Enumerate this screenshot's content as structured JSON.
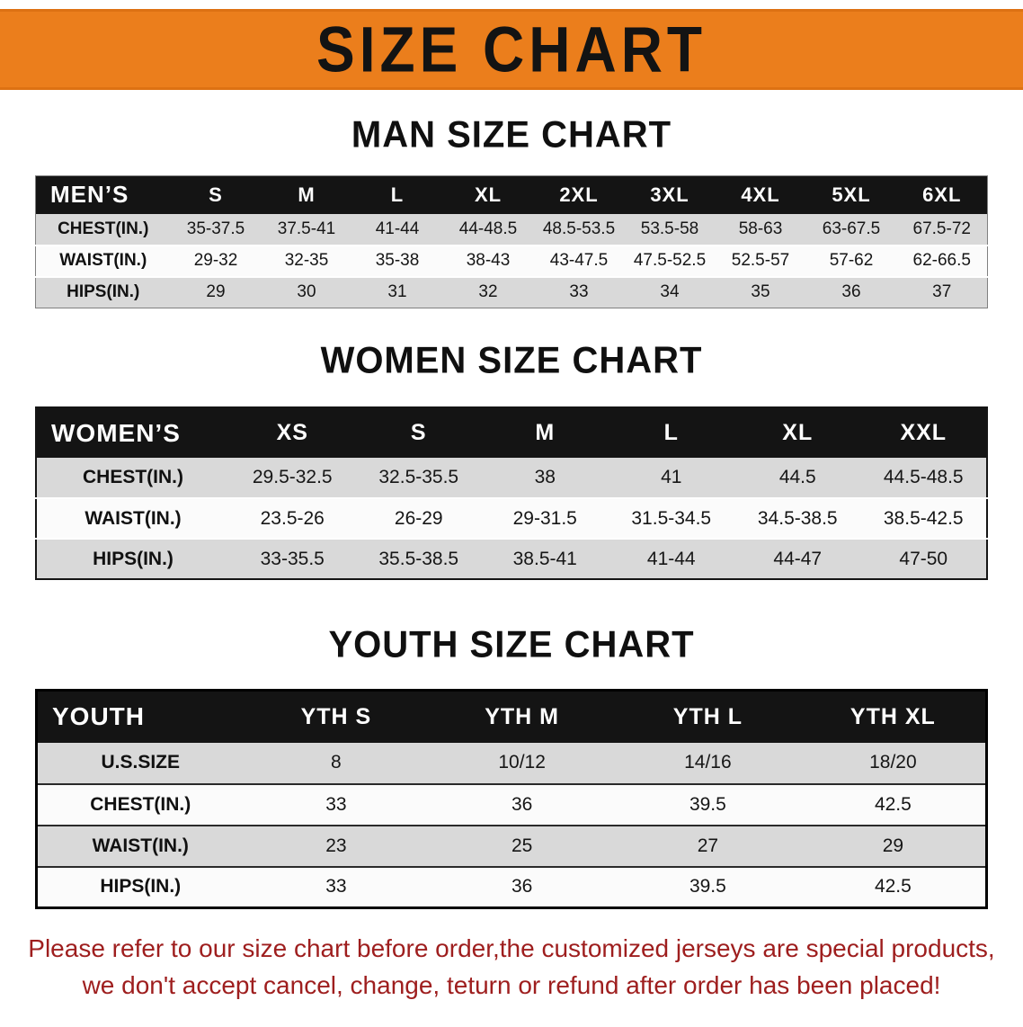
{
  "banner": {
    "title": "SIZE CHART"
  },
  "colors": {
    "banner_orange": "#EB7E1C",
    "table_header_black": "#141414",
    "row_stripe_gray": "#D9D9D9",
    "notice_red": "#9E1E1E"
  },
  "men": {
    "title": "MAN SIZE CHART",
    "header": [
      "MEN’S",
      "S",
      "M",
      "L",
      "XL",
      "2XL",
      "3XL",
      "4XL",
      "5XL",
      "6XL"
    ],
    "rows": [
      [
        "CHEST(IN.)",
        "35-37.5",
        "37.5-41",
        "41-44",
        "44-48.5",
        "48.5-53.5",
        "53.5-58",
        "58-63",
        "63-67.5",
        "67.5-72"
      ],
      [
        "WAIST(IN.)",
        "29-32",
        "32-35",
        "35-38",
        "38-43",
        "43-47.5",
        "47.5-52.5",
        "52.5-57",
        "57-62",
        "62-66.5"
      ],
      [
        "HIPS(IN.)",
        "29",
        "30",
        "31",
        "32",
        "33",
        "34",
        "35",
        "36",
        "37"
      ]
    ]
  },
  "women": {
    "title": "WOMEN SIZE CHART",
    "header": [
      "WOMEN’S",
      "XS",
      "S",
      "M",
      "L",
      "XL",
      "XXL"
    ],
    "rows": [
      [
        "CHEST(IN.)",
        "29.5-32.5",
        "32.5-35.5",
        "38",
        "41",
        "44.5",
        "44.5-48.5"
      ],
      [
        "WAIST(IN.)",
        "23.5-26",
        "26-29",
        "29-31.5",
        "31.5-34.5",
        "34.5-38.5",
        "38.5-42.5"
      ],
      [
        "HIPS(IN.)",
        "33-35.5",
        "35.5-38.5",
        "38.5-41",
        "41-44",
        "44-47",
        "47-50"
      ]
    ]
  },
  "youth": {
    "title": "YOUTH SIZE CHART",
    "header": [
      "YOUTH",
      "YTH S",
      "YTH M",
      "YTH L",
      "YTH XL"
    ],
    "rows": [
      [
        "U.S.SIZE",
        "8",
        "10/12",
        "14/16",
        "18/20"
      ],
      [
        "CHEST(IN.)",
        "33",
        "36",
        "39.5",
        "42.5"
      ],
      [
        "WAIST(IN.)",
        "23",
        "25",
        "27",
        "29"
      ],
      [
        "HIPS(IN.)",
        "33",
        "36",
        "39.5",
        "42.5"
      ]
    ]
  },
  "notice": {
    "line1": "Please refer to our size chart before order,the customized jerseys are special products,",
    "line2": "we don't accept cancel, change, teturn or refund after order has been placed!"
  }
}
